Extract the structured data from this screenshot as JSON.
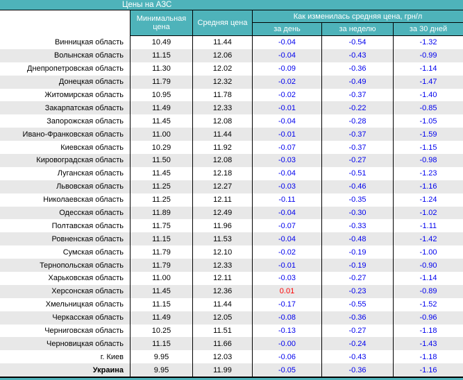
{
  "colors": {
    "accent_teal": "#4EB3BA",
    "stripe_gray": "#E8E8E8",
    "negative_blue": "#0000EE",
    "positive_red": "#FF0000",
    "header_text": "#FFFFFF"
  },
  "chart_data": {
    "type": "table",
    "title": "Цены на АЗС",
    "headers": {
      "min_price": "Минимальная цена",
      "avg_price": "Средняя цена",
      "change_group": {
        "title": "Как изменилась средняя цена, грн/л",
        "subs": [
          "за день",
          "за неделю",
          "за 30 дней"
        ]
      }
    },
    "rows": [
      {
        "region": "Винницкая область",
        "min": "10.49",
        "avg": "11.44",
        "d1": "-0.04",
        "d7": "-0.54",
        "d30": "-1.32"
      },
      {
        "region": "Волынская область",
        "min": "11.15",
        "avg": "12.06",
        "d1": "-0.04",
        "d7": "-0.43",
        "d30": "-0.99"
      },
      {
        "region": "Днепропетровская область",
        "min": "11.30",
        "avg": "12.02",
        "d1": "-0.09",
        "d7": "-0.36",
        "d30": "-1.14"
      },
      {
        "region": "Донецкая область",
        "min": "11.79",
        "avg": "12.32",
        "d1": "-0.02",
        "d7": "-0.49",
        "d30": "-1.47"
      },
      {
        "region": "Житомирская область",
        "min": "10.95",
        "avg": "11.78",
        "d1": "-0.02",
        "d7": "-0.37",
        "d30": "-1.40"
      },
      {
        "region": "Закарпатская область",
        "min": "11.49",
        "avg": "12.33",
        "d1": "-0.01",
        "d7": "-0.22",
        "d30": "-0.85"
      },
      {
        "region": "Запорожская область",
        "min": "11.45",
        "avg": "12.08",
        "d1": "-0.04",
        "d7": "-0.28",
        "d30": "-1.05"
      },
      {
        "region": "Ивано-Франковская область",
        "min": "11.00",
        "avg": "11.44",
        "d1": "-0.01",
        "d7": "-0.37",
        "d30": "-1.59"
      },
      {
        "region": "Киевская область",
        "min": "10.29",
        "avg": "11.92",
        "d1": "-0.07",
        "d7": "-0.37",
        "d30": "-1.15"
      },
      {
        "region": "Кировоградская область",
        "min": "11.50",
        "avg": "12.08",
        "d1": "-0.03",
        "d7": "-0.27",
        "d30": "-0.98"
      },
      {
        "region": "Луганская область",
        "min": "11.45",
        "avg": "12.18",
        "d1": "-0.04",
        "d7": "-0.51",
        "d30": "-1.23"
      },
      {
        "region": "Львовская область",
        "min": "11.25",
        "avg": "12.27",
        "d1": "-0.03",
        "d7": "-0.46",
        "d30": "-1.16"
      },
      {
        "region": "Николаевская область",
        "min": "11.25",
        "avg": "12.11",
        "d1": "-0.11",
        "d7": "-0.35",
        "d30": "-1.24"
      },
      {
        "region": "Одесская область",
        "min": "11.89",
        "avg": "12.49",
        "d1": "-0.04",
        "d7": "-0.30",
        "d30": "-1.02"
      },
      {
        "region": "Полтавская область",
        "min": "11.75",
        "avg": "11.96",
        "d1": "-0.07",
        "d7": "-0.33",
        "d30": "-1.11"
      },
      {
        "region": "Ровненская область",
        "min": "11.15",
        "avg": "11.53",
        "d1": "-0.04",
        "d7": "-0.48",
        "d30": "-1.42"
      },
      {
        "region": "Сумская область",
        "min": "11.79",
        "avg": "12.10",
        "d1": "-0.02",
        "d7": "-0.19",
        "d30": "-1.00"
      },
      {
        "region": "Тернопольская область",
        "min": "11.79",
        "avg": "12.33",
        "d1": "-0.01",
        "d7": "-0.19",
        "d30": "-0.90"
      },
      {
        "region": "Харьковская область",
        "min": "11.00",
        "avg": "12.11",
        "d1": "-0.03",
        "d7": "-0.27",
        "d30": "-1.14"
      },
      {
        "region": "Херсонская область",
        "min": "11.45",
        "avg": "12.36",
        "d1": "0.01",
        "d7": "-0.23",
        "d30": "-0.89"
      },
      {
        "region": "Хмельницкая область",
        "min": "11.15",
        "avg": "11.44",
        "d1": "-0.17",
        "d7": "-0.55",
        "d30": "-1.52"
      },
      {
        "region": "Черкасская область",
        "min": "11.49",
        "avg": "12.05",
        "d1": "-0.08",
        "d7": "-0.36",
        "d30": "-0.96"
      },
      {
        "region": "Черниговская область",
        "min": "10.25",
        "avg": "11.51",
        "d1": "-0.13",
        "d7": "-0.27",
        "d30": "-1.18"
      },
      {
        "region": "Черновицкая область",
        "min": "11.15",
        "avg": "11.66",
        "d1": "-0.00",
        "d7": "-0.24",
        "d30": "-1.43"
      },
      {
        "region": "г. Киев",
        "min": "9.95",
        "avg": "12.03",
        "d1": "-0.06",
        "d7": "-0.43",
        "d30": "-1.18"
      },
      {
        "region": "Украина",
        "min": "9.95",
        "avg": "11.99",
        "d1": "-0.05",
        "d7": "-0.36",
        "d30": "-1.16",
        "bold": true
      }
    ]
  }
}
